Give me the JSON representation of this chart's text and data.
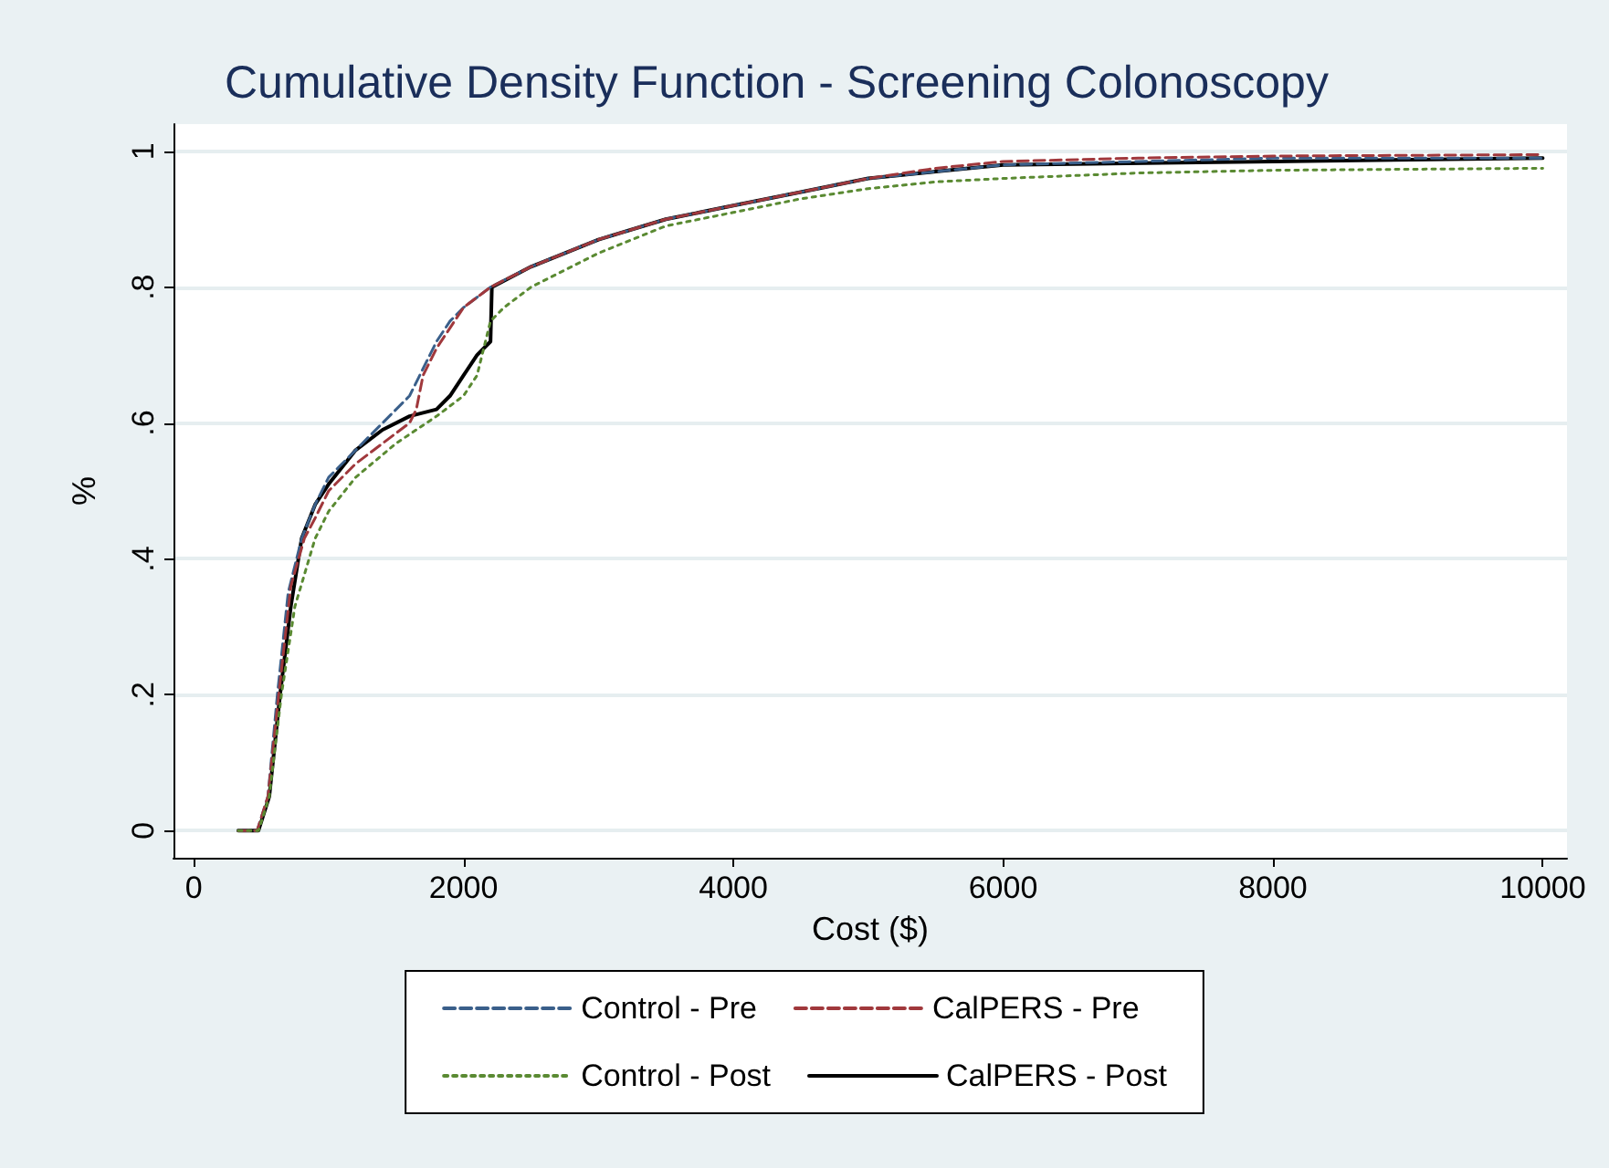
{
  "chart_data": {
    "type": "line",
    "title": "Cumulative Density Function - Screening Colonoscopy",
    "xlabel": "Cost ($)",
    "ylabel": "%",
    "xlim": [
      -150,
      10180
    ],
    "xticks": [
      0,
      2000,
      4000,
      6000,
      8000,
      10000
    ],
    "ylim": [
      -0.04,
      1.04
    ],
    "yticks": [
      {
        "value": 0,
        "label": "0"
      },
      {
        "value": 0.2,
        "label": ".2"
      },
      {
        "value": 0.4,
        "label": ".4"
      },
      {
        "value": 0.6,
        "label": ".6"
      },
      {
        "value": 0.8,
        "label": ".8"
      },
      {
        "value": 1,
        "label": "1"
      }
    ],
    "grid": "y",
    "legend": "bottom",
    "marker": "none",
    "series": [
      {
        "name": "Control - Pre",
        "color": "#3a5f8a",
        "line_style": "dashed",
        "x": [
          330,
          470,
          550,
          620,
          700,
          800,
          900,
          1000,
          1200,
          1400,
          1600,
          1700,
          1800,
          1900,
          2000,
          2200,
          2500,
          3000,
          3500,
          4000,
          4500,
          5000,
          5500,
          6000,
          7000,
          8000,
          10000
        ],
        "values": [
          0,
          0,
          0.05,
          0.2,
          0.35,
          0.43,
          0.48,
          0.52,
          0.56,
          0.6,
          0.64,
          0.68,
          0.72,
          0.75,
          0.77,
          0.8,
          0.83,
          0.87,
          0.9,
          0.92,
          0.94,
          0.96,
          0.97,
          0.98,
          0.985,
          0.99,
          0.99
        ]
      },
      {
        "name": "CalPERS - Pre",
        "color": "#a0383c",
        "line_style": "dashed",
        "x": [
          330,
          470,
          550,
          630,
          720,
          820,
          900,
          1000,
          1200,
          1400,
          1600,
          1650,
          1700,
          1800,
          1900,
          2000,
          2200,
          2500,
          3000,
          3500,
          4000,
          4500,
          5000,
          5500,
          6000,
          7000,
          8000,
          10000
        ],
        "values": [
          0,
          0,
          0.05,
          0.2,
          0.36,
          0.43,
          0.46,
          0.5,
          0.54,
          0.57,
          0.6,
          0.62,
          0.67,
          0.71,
          0.74,
          0.77,
          0.8,
          0.83,
          0.87,
          0.9,
          0.92,
          0.94,
          0.96,
          0.975,
          0.985,
          0.99,
          0.993,
          0.995
        ]
      },
      {
        "name": "Control - Post",
        "color": "#5a8a32",
        "line_style": "dotted",
        "x": [
          330,
          480,
          560,
          650,
          750,
          900,
          1000,
          1200,
          1500,
          1800,
          2000,
          2100,
          2200,
          2300,
          2500,
          3000,
          3500,
          4000,
          4500,
          5000,
          5500,
          6000,
          7000,
          8000,
          10000
        ],
        "values": [
          0,
          0,
          0.05,
          0.2,
          0.33,
          0.43,
          0.47,
          0.52,
          0.57,
          0.61,
          0.64,
          0.67,
          0.75,
          0.77,
          0.8,
          0.85,
          0.89,
          0.91,
          0.93,
          0.945,
          0.955,
          0.96,
          0.968,
          0.972,
          0.975
        ]
      },
      {
        "name": "CalPERS - Post",
        "color": "#000000",
        "line_style": "solid",
        "x": [
          330,
          480,
          560,
          640,
          720,
          800,
          900,
          1000,
          1200,
          1400,
          1600,
          1800,
          1900,
          2000,
          2100,
          2200,
          2210,
          2500,
          3000,
          3500,
          4000,
          4500,
          5000,
          5500,
          6000,
          8000,
          10000
        ],
        "values": [
          0,
          0,
          0.05,
          0.2,
          0.33,
          0.43,
          0.48,
          0.51,
          0.56,
          0.59,
          0.61,
          0.62,
          0.64,
          0.67,
          0.7,
          0.72,
          0.8,
          0.83,
          0.87,
          0.9,
          0.92,
          0.94,
          0.96,
          0.97,
          0.98,
          0.985,
          0.99
        ]
      }
    ]
  }
}
